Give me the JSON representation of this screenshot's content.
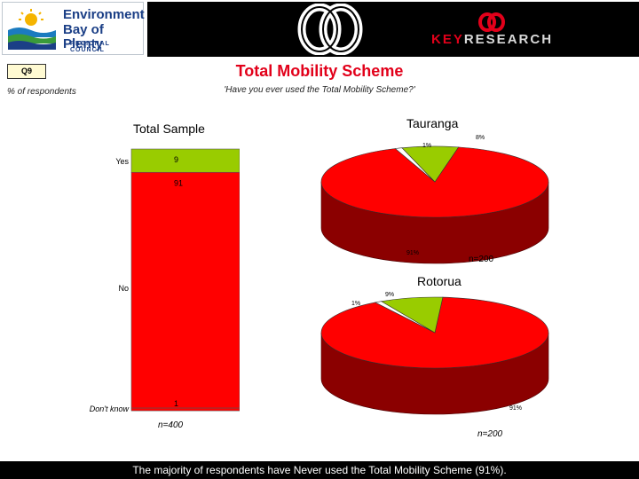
{
  "header": {
    "logo_line1": "Environment",
    "logo_line2": "Bay of Plenty",
    "logo_line3": "REGIONAL COUNCIL",
    "brand_key": "KEY",
    "brand_research": "RESEARCH"
  },
  "question_code": "Q9",
  "title": "Total Mobility Scheme",
  "respondents_label": "% of respondents",
  "question_text": "'Have you ever used the Total Mobility Scheme?'",
  "colors": {
    "accent_red": "#e2001a",
    "yes_green": "#99cc00",
    "pie_red": "#ff0000",
    "pie_side": "#8b0000"
  },
  "chart_data": [
    {
      "type": "bar",
      "orientation": "stacked-vertical",
      "title": "Total Sample",
      "categories": [
        "Yes",
        "No",
        "Don't know"
      ],
      "values": [
        9,
        91,
        1
      ],
      "value_labels": [
        "9",
        "91",
        "1"
      ],
      "sample_size": "n=400"
    },
    {
      "type": "pie",
      "title": "Tauranga",
      "labels": [
        "No",
        "Yes",
        "Don't know"
      ],
      "values": [
        91,
        8,
        1
      ],
      "value_labels": [
        "91%",
        "8%",
        "1%"
      ],
      "sample_size": "n=200"
    },
    {
      "type": "pie",
      "title": "Rotorua",
      "labels": [
        "No",
        "Yes",
        "Don't know"
      ],
      "values": [
        91,
        9,
        1
      ],
      "value_labels": [
        "91%",
        "9%",
        "1%"
      ],
      "sample_size": "n=200"
    }
  ],
  "footer_text": "The majority of respondents have Never used the Total Mobility Scheme (91%)."
}
